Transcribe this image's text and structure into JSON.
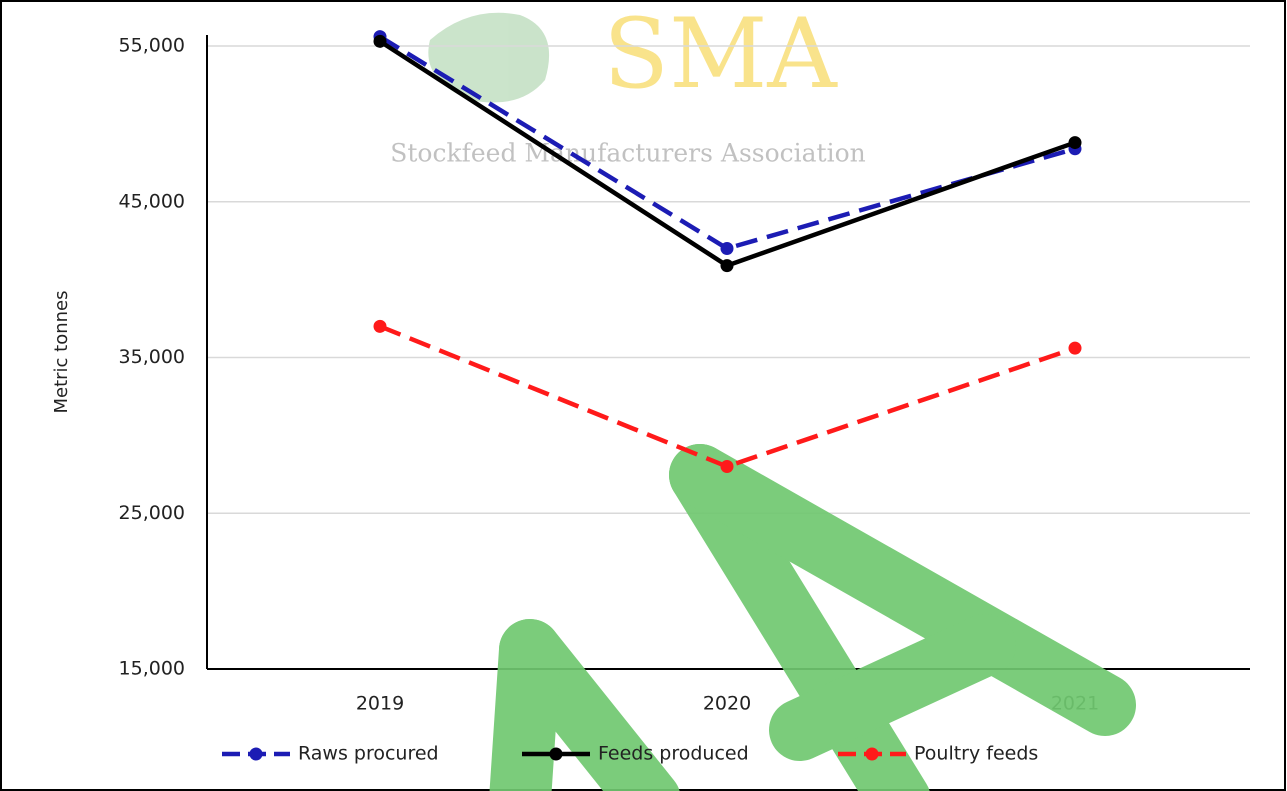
{
  "chart_data": {
    "type": "line",
    "y_label": "Metric tonnes",
    "categories": [
      "2019",
      "2020",
      "2021"
    ],
    "series": [
      {
        "name": "Raws procured",
        "color": "#1c1cb4",
        "dash": true,
        "values": [
          55600,
          42000,
          48400
        ]
      },
      {
        "name": "Feeds produced",
        "color": "#000000",
        "dash": false,
        "values": [
          55300,
          40900,
          48800
        ]
      },
      {
        "name": "Poultry feeds",
        "color": "#ff1a1a",
        "dash": true,
        "values": [
          37000,
          28000,
          35600
        ]
      }
    ],
    "ylim": [
      15000,
      55000
    ],
    "yticks": [
      {
        "value": 15000,
        "label": "15,000"
      },
      {
        "value": 25000,
        "label": "25,000"
      },
      {
        "value": 35000,
        "label": "35,000"
      },
      {
        "value": 45000,
        "label": "45,000"
      },
      {
        "value": 55000,
        "label": "55,000"
      }
    ],
    "grid": true,
    "legend": "bottom",
    "watermark": {
      "logo": "SMA",
      "caption": "Stockfeed Manufacturers Association"
    }
  }
}
